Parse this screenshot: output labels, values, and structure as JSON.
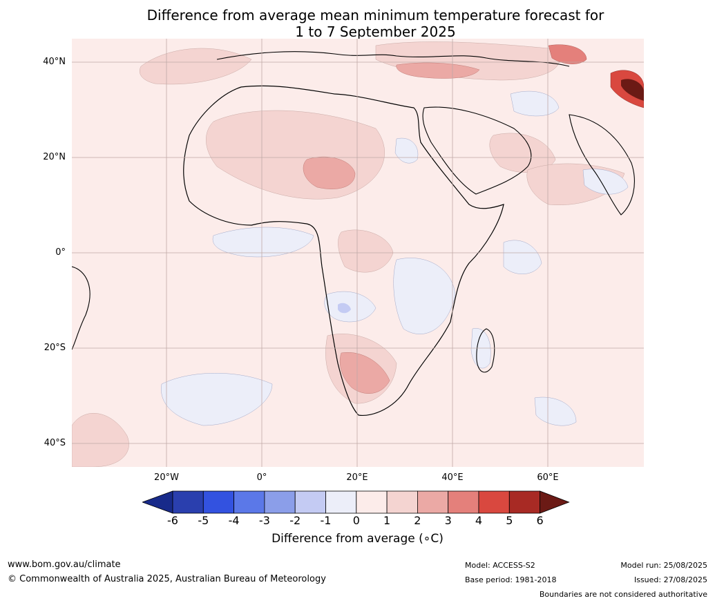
{
  "title": {
    "line1": "Difference from average mean minimum temperature forecast for",
    "line2": "1 to 7 September 2025"
  },
  "map": {
    "region": "Africa",
    "latitude_labels": [
      "40°N",
      "20°N",
      "0°",
      "20°S",
      "40°S"
    ],
    "longitude_labels": [
      "20°W",
      "0°",
      "20°E",
      "40°E",
      "60°E"
    ],
    "background_color": "#fcecea"
  },
  "colorbar": {
    "ticks": [
      "-6",
      "-5",
      "-4",
      "-3",
      "-2",
      "-1",
      "0",
      "1",
      "2",
      "3",
      "4",
      "5",
      "6"
    ],
    "colors": [
      "#182a8a",
      "#2a3fae",
      "#3352e0",
      "#5b78e8",
      "#8b9ee9",
      "#c4cbf3",
      "#eceef9",
      "#fcecea",
      "#f4d4d1",
      "#eba9a5",
      "#e4807b",
      "#d9483f",
      "#a82a24",
      "#6b1a15"
    ],
    "label": "Difference from average (∘C)"
  },
  "footer": {
    "website": "www.bom.gov.au/climate",
    "copyright": "© Commonwealth of Australia 2025, Australian Bureau of Meteorology",
    "model": "Model: ACCESS-S2",
    "base_period": "Base period: 1981-2018",
    "model_run": "Model run: 25/08/2025",
    "issued": "Issued: 27/08/2025",
    "disclaimer": "Boundaries are not considered authoritative"
  }
}
